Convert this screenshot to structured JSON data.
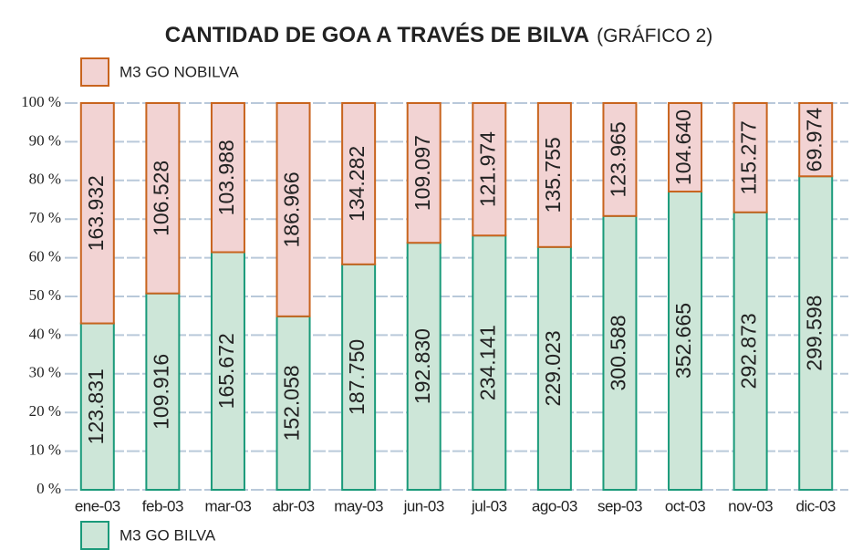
{
  "chart_data": {
    "type": "bar",
    "stack": "percent",
    "title": "CANTIDAD DE GOA A TRAVÉS DE BILVA",
    "subtitle": "(GRÁFICO 2)",
    "categories": [
      "ene-03",
      "feb-03",
      "mar-03",
      "abr-03",
      "may-03",
      "jun-03",
      "jul-03",
      "ago-03",
      "sep-03",
      "oct-03",
      "nov-03",
      "dic-03"
    ],
    "series": [
      {
        "name": "M3 GO BILVA",
        "color": "#cde6d8",
        "edge": "#1a9a7a",
        "values": [
          123831,
          109916,
          165672,
          152058,
          187750,
          192830,
          234141,
          229023,
          300588,
          352665,
          292873,
          299598
        ],
        "value_labels": [
          "123.831",
          "109.916",
          "165.672",
          "152.058",
          "187.750",
          "192.830",
          "234.141",
          "229.023",
          "300.588",
          "352.665",
          "292.873",
          "299.598"
        ]
      },
      {
        "name": "M3 GO NOBILVA",
        "color": "#f2d3d3",
        "edge": "#c8641e",
        "values": [
          163932,
          106528,
          103988,
          186966,
          134282,
          109097,
          121974,
          135755,
          123965,
          104640,
          115277,
          69974
        ],
        "value_labels": [
          "163.932",
          "106.528",
          "103.988",
          "186.966",
          "134.282",
          "109.097",
          "121.974",
          "135.755",
          "123.965",
          "104.640",
          "115.277",
          "69.974"
        ]
      }
    ],
    "ylim": [
      0,
      100
    ],
    "yticks": [
      {
        "value": 0,
        "label": "0 %"
      },
      {
        "value": 10,
        "label": "10 %"
      },
      {
        "value": 20,
        "label": "20 %"
      },
      {
        "value": 30,
        "label": "30 %"
      },
      {
        "value": 40,
        "label": "40 %"
      },
      {
        "value": 50,
        "label": "50 %"
      },
      {
        "value": 60,
        "label": "60 %"
      },
      {
        "value": 70,
        "label": "70 %"
      },
      {
        "value": 80,
        "label": "80 %"
      },
      {
        "value": 90,
        "label": "90 %"
      },
      {
        "value": 100,
        "label": "100 %"
      }
    ],
    "grid": true
  }
}
